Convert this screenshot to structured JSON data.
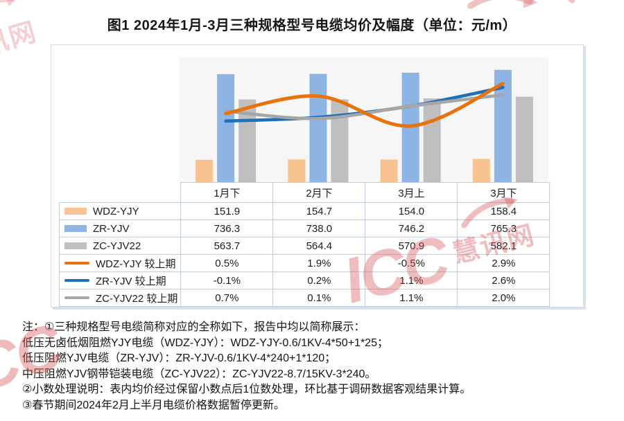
{
  "title": "图1 2024年1月-3月三种规格型号电缆均价及幅度（单位：元/m）",
  "watermark": {
    "brand": "ICC",
    "suffix": "慧讯网"
  },
  "chart_data": {
    "type": "bar+line",
    "categories": [
      "1月下",
      "2月下",
      "3月上",
      "3月下"
    ],
    "bar_series": [
      {
        "name": "WDZ-YJY",
        "color": "#F8C291",
        "values": [
          151.9,
          154.7,
          154.0,
          158.4
        ]
      },
      {
        "name": "ZR-YJV",
        "color": "#8EB4E3",
        "values": [
          736.3,
          738.0,
          746.2,
          765.3
        ]
      },
      {
        "name": "ZC-YJV22",
        "color": "#BFBFBF",
        "values": [
          563.7,
          564.4,
          570.9,
          582.1
        ]
      }
    ],
    "line_series": [
      {
        "name": "WDZ-YJY 较上期",
        "color": "#E8720C",
        "values": [
          0.5,
          1.9,
          -0.5,
          2.9
        ]
      },
      {
        "name": "ZR-YJV 较上期",
        "color": "#1F6FBF",
        "values": [
          -0.1,
          0.2,
          1.1,
          2.6
        ]
      },
      {
        "name": "ZC-YJV22 较上期",
        "color": "#A6A6A6",
        "values": [
          0.7,
          0.1,
          1.1,
          2.0
        ]
      }
    ],
    "primary_axis": {
      "min": 0,
      "max": 850,
      "unit": "元/m",
      "visible": false
    },
    "secondary_axis": {
      "min": -5,
      "max": 5,
      "unit": "%",
      "visible": false
    },
    "grid": false,
    "legend_position": "table-left-column",
    "title": "图1 2024年1月-3月三种规格型号电缆均价及幅度（单位：元/m）"
  },
  "table": {
    "columns": [
      "1月下",
      "2月下",
      "3月上",
      "3月下"
    ],
    "rows": [
      {
        "label": "WDZ-YJY",
        "swatch": "bar",
        "color": "#F8C291",
        "values": [
          "151.9",
          "154.7",
          "154.0",
          "158.4"
        ]
      },
      {
        "label": "ZR-YJV",
        "swatch": "bar",
        "color": "#8EB4E3",
        "values": [
          "736.3",
          "738.0",
          "746.2",
          "765.3"
        ]
      },
      {
        "label": "ZC-YJV22",
        "swatch": "bar",
        "color": "#BFBFBF",
        "values": [
          "563.7",
          "564.4",
          "570.9",
          "582.1"
        ]
      },
      {
        "label": "WDZ-YJY 较上期",
        "swatch": "line",
        "color": "#E8720C",
        "values": [
          "0.5%",
          "1.9%",
          "-0.5%",
          "2.9%"
        ]
      },
      {
        "label": "ZR-YJV 较上期",
        "swatch": "line",
        "color": "#1F6FBF",
        "values": [
          "-0.1%",
          "0.2%",
          "1.1%",
          "2.6%"
        ]
      },
      {
        "label": "ZC-YJV22 较上期",
        "swatch": "line",
        "color": "#A6A6A6",
        "values": [
          "0.7%",
          "0.1%",
          "1.1%",
          "2.0%"
        ]
      }
    ]
  },
  "notes": [
    "注：①三种规格型号电缆简称对应的全称如下，报告中均以简称展示：",
    "低压无卤低烟阻燃YJY电缆（WDZ-YJY）：WDZ-YJY-0.6/1KV-4*50+1*25；",
    "低压阻燃YJV电缆（ZR-YJV）：ZR-YJV-0.6/1KV-4*240+1*120；",
    "中压阻燃YJV钢带铠装电缆（ZC-YJV22）：ZC-YJV22-8.7/15KV-3*240。",
    "②小数处理说明：表内均价经过保留小数点后1位数处理，环比基于调研数据客观结果计算。",
    "③春节期间2024年2月上半月电缆价格数据暂停更新。"
  ]
}
